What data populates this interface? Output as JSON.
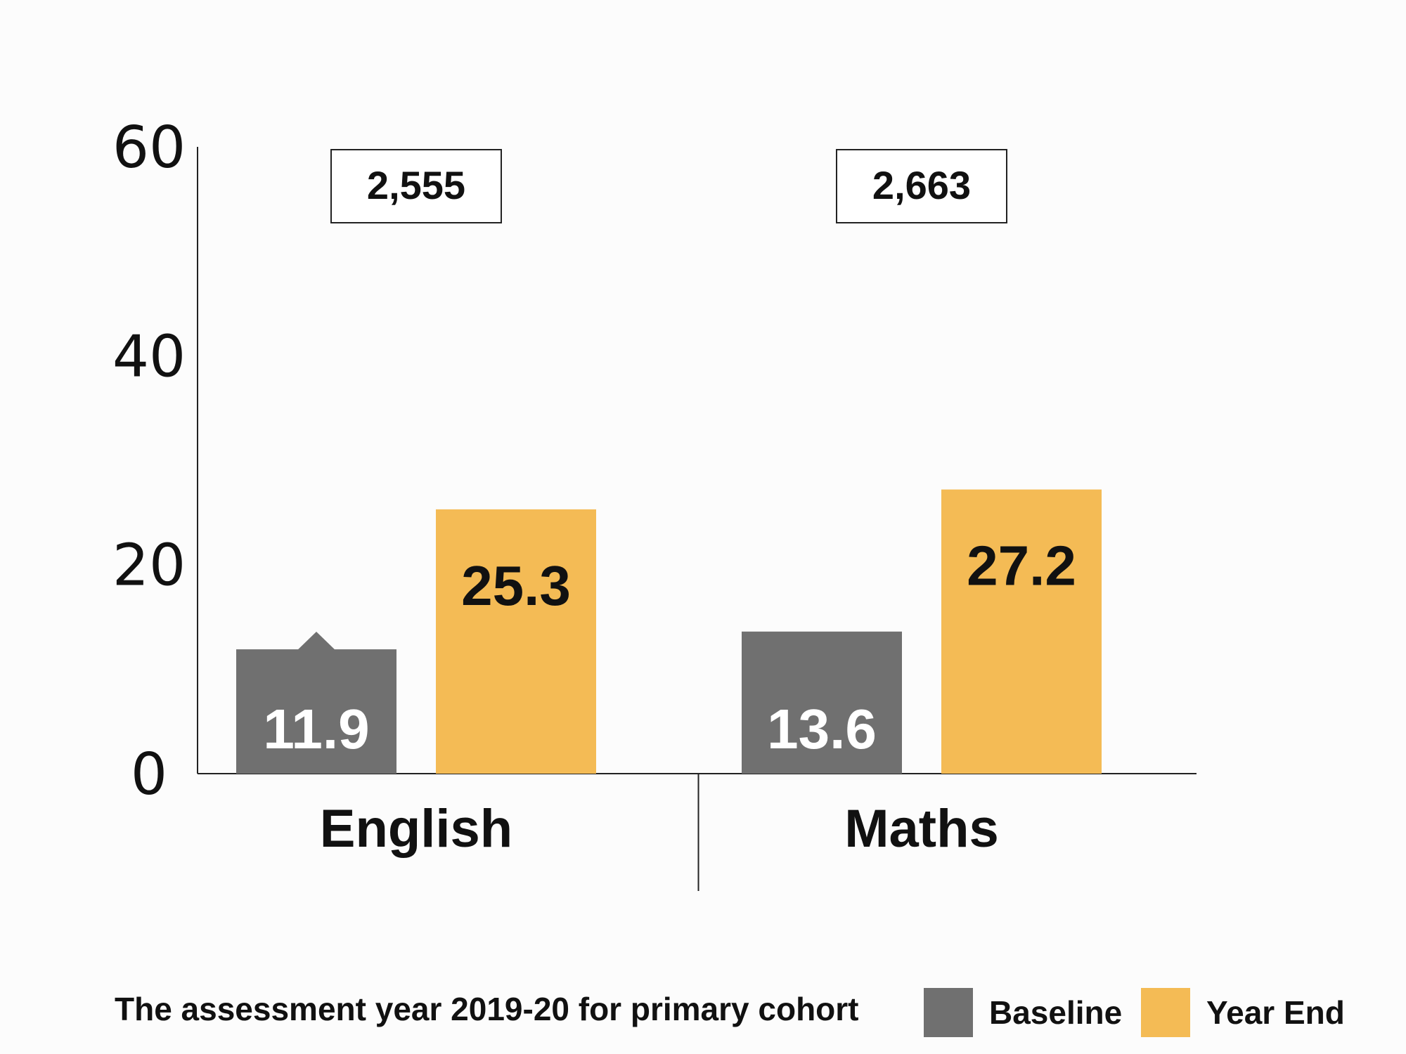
{
  "chart_data": {
    "type": "bar",
    "categories": [
      "English",
      "Maths"
    ],
    "series": [
      {
        "name": "Baseline",
        "values": [
          11.9,
          13.6
        ],
        "color": "#707070",
        "label_color": "#ffffff"
      },
      {
        "name": "Year End",
        "values": [
          25.3,
          27.2
        ],
        "color": "#f4bb55",
        "label_color": "#111111"
      }
    ],
    "value_labels": [
      [
        "11.9",
        "13.6"
      ],
      [
        "25.3",
        "27.2"
      ]
    ],
    "group_counts": [
      "2,555",
      "2,663"
    ],
    "ylim": [
      0,
      60
    ],
    "yticks": [
      "0",
      "20",
      "40",
      "60"
    ],
    "grid": false,
    "legend_position": "bottom-right",
    "footnote": "The assessment year 2019-20 for primary cohort",
    "marker": {
      "type": "up-triangle",
      "color": "#707070",
      "series": 0,
      "category": 0
    }
  }
}
